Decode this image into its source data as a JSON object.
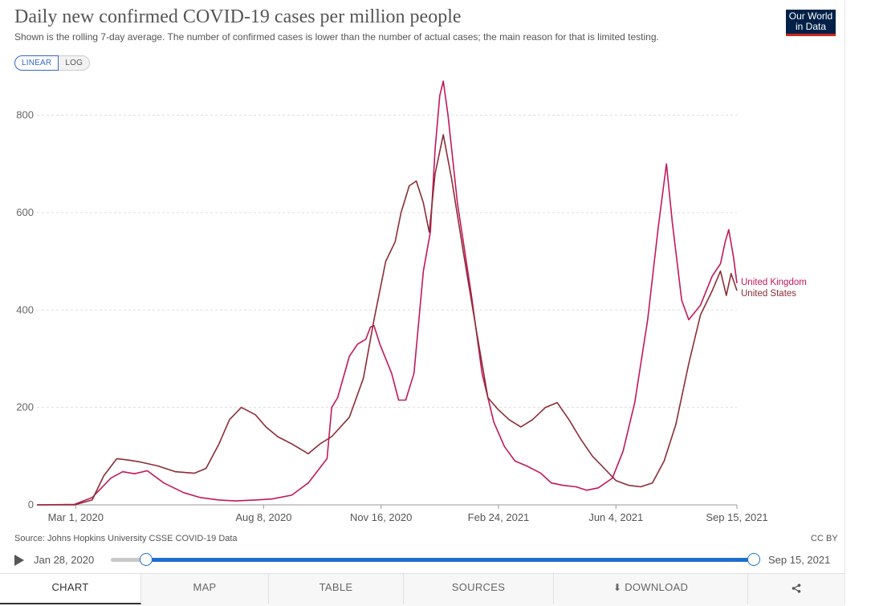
{
  "header": {
    "title": "Daily new confirmed COVID-19 cases per million people",
    "subtitle": "Shown is the rolling 7-day average. The number of confirmed cases is lower than the number of actual cases; the main reason for that is limited testing.",
    "logo_line1": "Our World",
    "logo_line2": "in Data"
  },
  "scale_toggle": {
    "linear": "LINEAR",
    "log": "LOG",
    "selected": "LINEAR"
  },
  "footer": {
    "source": "Source: Johns Hopkins University CSSE COVID-19 Data",
    "license": "CC BY"
  },
  "timeline": {
    "start": "Jan 28, 2020",
    "end": "Sep 15, 2021"
  },
  "tabs": {
    "chart": "CHART",
    "map": "MAP",
    "table": "TABLE",
    "sources": "SOURCES",
    "download": "DOWNLOAD"
  },
  "colors": {
    "united_kingdom": "#c2185b",
    "united_states": "#8b2d35",
    "accent": "#1f6fd1"
  },
  "chart_data": {
    "type": "line",
    "title": "Daily new confirmed COVID-19 cases per million people",
    "y_ticks": [
      0,
      200,
      400,
      600,
      800
    ],
    "ylim": [
      0,
      880
    ],
    "x_range": [
      "2020-01-28",
      "2021-09-15"
    ],
    "x_ticks": [
      {
        "date": "2020-03-01",
        "label": "Mar 1, 2020"
      },
      {
        "date": "2020-08-08",
        "label": "Aug 8, 2020"
      },
      {
        "date": "2020-11-16",
        "label": "Nov 16, 2020"
      },
      {
        "date": "2021-02-24",
        "label": "Feb 24, 2021"
      },
      {
        "date": "2021-06-04",
        "label": "Jun 4, 2021"
      },
      {
        "date": "2021-09-15",
        "label": "Sep 15, 2021"
      }
    ],
    "grid": true,
    "legend": "right-end labels",
    "series": [
      {
        "name": "United Kingdom",
        "color": "#c2185b",
        "points": [
          [
            "2020-01-28",
            0
          ],
          [
            "2020-02-29",
            1
          ],
          [
            "2020-03-15",
            15
          ],
          [
            "2020-03-31",
            55
          ],
          [
            "2020-04-10",
            68
          ],
          [
            "2020-04-20",
            64
          ],
          [
            "2020-05-01",
            70
          ],
          [
            "2020-05-15",
            45
          ],
          [
            "2020-06-01",
            25
          ],
          [
            "2020-06-15",
            15
          ],
          [
            "2020-07-01",
            10
          ],
          [
            "2020-07-15",
            8
          ],
          [
            "2020-08-01",
            10
          ],
          [
            "2020-08-15",
            12
          ],
          [
            "2020-09-01",
            20
          ],
          [
            "2020-09-15",
            45
          ],
          [
            "2020-10-01",
            95
          ],
          [
            "2020-10-05",
            200
          ],
          [
            "2020-10-10",
            220
          ],
          [
            "2020-10-20",
            305
          ],
          [
            "2020-10-27",
            330
          ],
          [
            "2020-11-03",
            340
          ],
          [
            "2020-11-07",
            365
          ],
          [
            "2020-11-10",
            368
          ],
          [
            "2020-11-15",
            330
          ],
          [
            "2020-11-25",
            270
          ],
          [
            "2020-12-01",
            215
          ],
          [
            "2020-12-07",
            215
          ],
          [
            "2020-12-14",
            270
          ],
          [
            "2020-12-22",
            480
          ],
          [
            "2020-12-28",
            560
          ],
          [
            "2021-01-01",
            730
          ],
          [
            "2021-01-05",
            840
          ],
          [
            "2021-01-08",
            870
          ],
          [
            "2021-01-12",
            800
          ],
          [
            "2021-01-20",
            620
          ],
          [
            "2021-02-01",
            430
          ],
          [
            "2021-02-10",
            270
          ],
          [
            "2021-02-20",
            170
          ],
          [
            "2021-03-01",
            120
          ],
          [
            "2021-03-10",
            90
          ],
          [
            "2021-03-20",
            80
          ],
          [
            "2021-04-01",
            65
          ],
          [
            "2021-04-10",
            45
          ],
          [
            "2021-04-20",
            40
          ],
          [
            "2021-05-01",
            37
          ],
          [
            "2021-05-10",
            30
          ],
          [
            "2021-05-20",
            35
          ],
          [
            "2021-06-01",
            55
          ],
          [
            "2021-06-10",
            110
          ],
          [
            "2021-06-20",
            210
          ],
          [
            "2021-07-01",
            380
          ],
          [
            "2021-07-10",
            570
          ],
          [
            "2021-07-17",
            700
          ],
          [
            "2021-07-22",
            580
          ],
          [
            "2021-07-30",
            420
          ],
          [
            "2021-08-05",
            380
          ],
          [
            "2021-08-15",
            410
          ],
          [
            "2021-08-25",
            470
          ],
          [
            "2021-09-01",
            495
          ],
          [
            "2021-09-05",
            540
          ],
          [
            "2021-09-08",
            565
          ],
          [
            "2021-09-12",
            510
          ],
          [
            "2021-09-15",
            455
          ]
        ]
      },
      {
        "name": "United States",
        "color": "#8b2d35",
        "points": [
          [
            "2020-01-28",
            0
          ],
          [
            "2020-02-29",
            0
          ],
          [
            "2020-03-15",
            10
          ],
          [
            "2020-03-25",
            60
          ],
          [
            "2020-04-05",
            95
          ],
          [
            "2020-04-15",
            92
          ],
          [
            "2020-04-25",
            88
          ],
          [
            "2020-05-10",
            80
          ],
          [
            "2020-05-25",
            68
          ],
          [
            "2020-06-10",
            65
          ],
          [
            "2020-06-20",
            75
          ],
          [
            "2020-07-01",
            125
          ],
          [
            "2020-07-10",
            175
          ],
          [
            "2020-07-20",
            200
          ],
          [
            "2020-08-01",
            185
          ],
          [
            "2020-08-10",
            160
          ],
          [
            "2020-08-20",
            140
          ],
          [
            "2020-09-01",
            125
          ],
          [
            "2020-09-15",
            105
          ],
          [
            "2020-09-25",
            125
          ],
          [
            "2020-10-05",
            140
          ],
          [
            "2020-10-20",
            180
          ],
          [
            "2020-11-01",
            260
          ],
          [
            "2020-11-10",
            380
          ],
          [
            "2020-11-20",
            500
          ],
          [
            "2020-11-28",
            540
          ],
          [
            "2020-12-03",
            600
          ],
          [
            "2020-12-10",
            655
          ],
          [
            "2020-12-16",
            665
          ],
          [
            "2020-12-22",
            620
          ],
          [
            "2020-12-27",
            560
          ],
          [
            "2021-01-01",
            680
          ],
          [
            "2021-01-08",
            760
          ],
          [
            "2021-01-15",
            670
          ],
          [
            "2021-01-25",
            520
          ],
          [
            "2021-02-05",
            360
          ],
          [
            "2021-02-15",
            220
          ],
          [
            "2021-02-24",
            195
          ],
          [
            "2021-03-05",
            175
          ],
          [
            "2021-03-15",
            160
          ],
          [
            "2021-03-25",
            175
          ],
          [
            "2021-04-05",
            200
          ],
          [
            "2021-04-15",
            210
          ],
          [
            "2021-04-25",
            175
          ],
          [
            "2021-05-05",
            135
          ],
          [
            "2021-05-15",
            100
          ],
          [
            "2021-05-25",
            75
          ],
          [
            "2021-06-04",
            50
          ],
          [
            "2021-06-15",
            40
          ],
          [
            "2021-06-25",
            37
          ],
          [
            "2021-07-05",
            45
          ],
          [
            "2021-07-15",
            90
          ],
          [
            "2021-07-25",
            165
          ],
          [
            "2021-08-05",
            290
          ],
          [
            "2021-08-15",
            390
          ],
          [
            "2021-08-25",
            440
          ],
          [
            "2021-09-01",
            480
          ],
          [
            "2021-09-06",
            430
          ],
          [
            "2021-09-10",
            475
          ],
          [
            "2021-09-15",
            440
          ]
        ]
      }
    ]
  }
}
